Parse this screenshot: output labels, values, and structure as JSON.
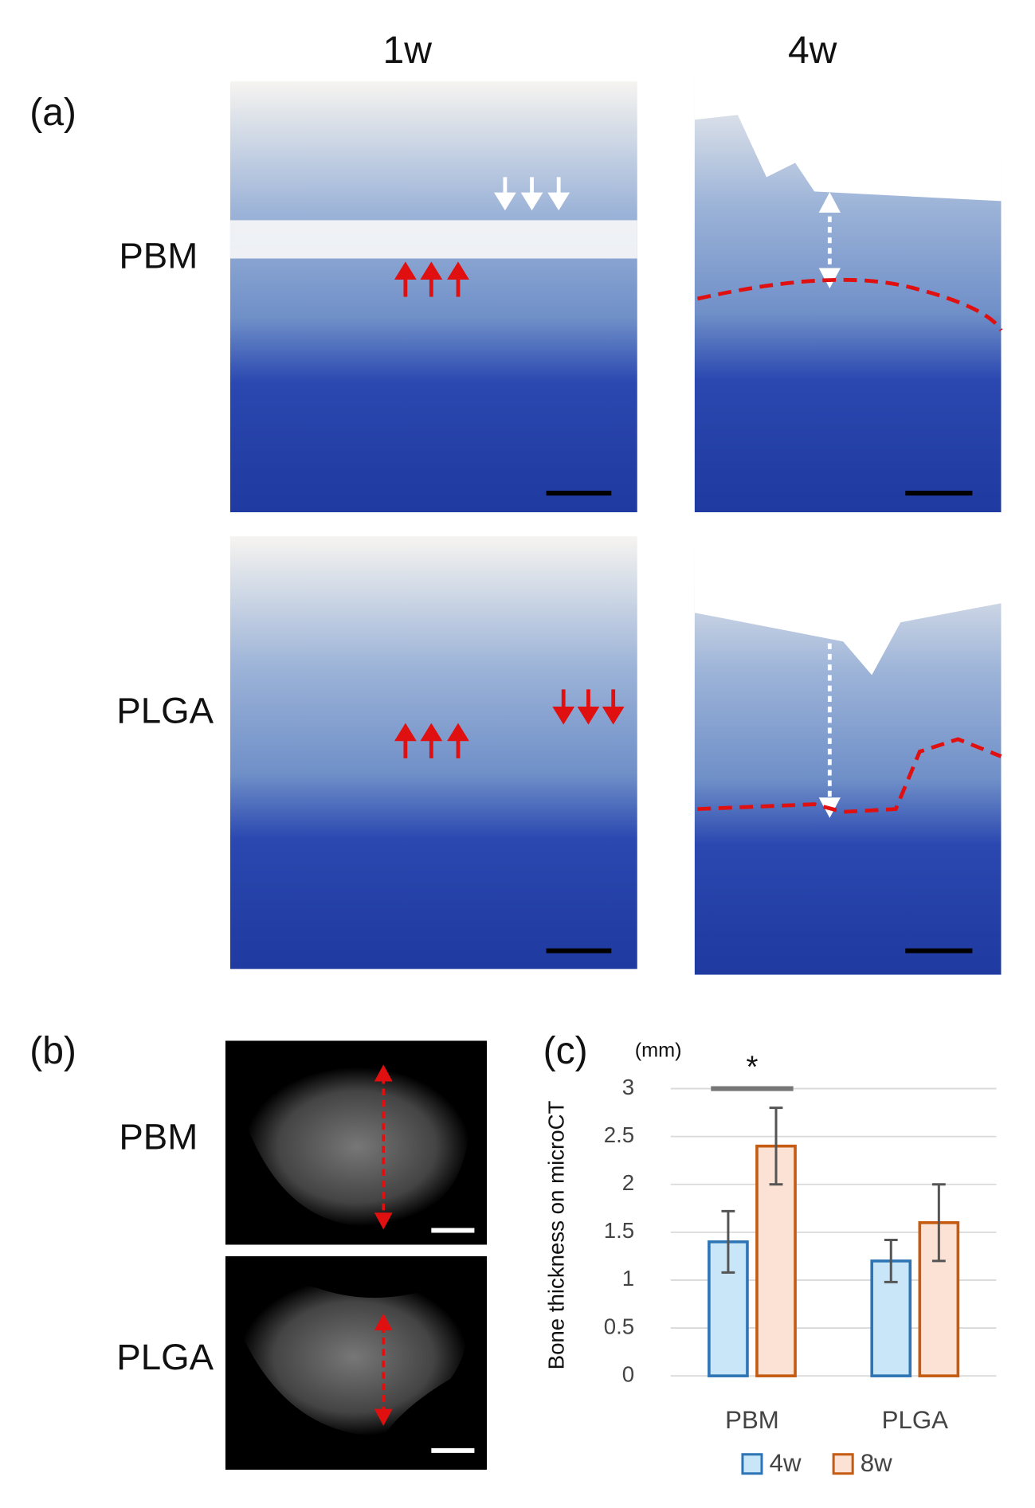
{
  "figure": {
    "column_headers": [
      "1w",
      "4w"
    ],
    "panel_labels": [
      "(a)",
      "(b)",
      "(c)"
    ],
    "row_labels_a": [
      "PBM",
      "PLGA"
    ],
    "row_labels_b": [
      "PBM",
      "PLGA"
    ]
  },
  "chart_data": {
    "type": "bar",
    "unit": "(mm)",
    "y_label": "Bone thickness on microCT",
    "significance": "*",
    "categories": [
      "PBM",
      "PLGA"
    ],
    "series": [
      {
        "name": "4w",
        "color": "#c8e6f7",
        "edge": "#2e75b6",
        "values": [
          1.4,
          1.2
        ],
        "errors": [
          0.32,
          0.22
        ]
      },
      {
        "name": "8w",
        "color": "#fbe2d4",
        "edge": "#c55a11",
        "values": [
          2.4,
          1.6
        ],
        "errors": [
          0.4,
          0.4
        ]
      }
    ],
    "ylim": [
      0,
      3
    ],
    "yticks": [
      0,
      0.5,
      1,
      1.5,
      2,
      2.5,
      3
    ],
    "grid": true
  }
}
